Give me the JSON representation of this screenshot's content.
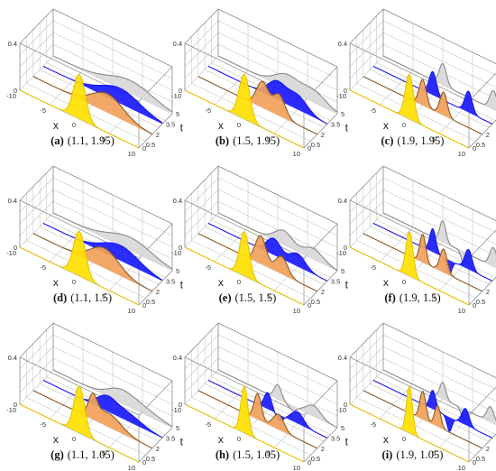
{
  "chart_data": [
    {
      "id": "a",
      "type": "area",
      "label": "(a)",
      "params": "(1.1, 1.95)",
      "alpha": 1.1,
      "beta": 1.95,
      "xlabel": "x",
      "ylabel": "t",
      "zlim": [
        0,
        0.4
      ],
      "xlim": [
        -10,
        10
      ],
      "t_values": [
        0,
        2,
        3.5,
        5
      ],
      "x_ticks": [
        "-10",
        "-5",
        "0",
        "5",
        "10"
      ],
      "t_ticks": [
        "0",
        "0.5",
        "2",
        "3.5",
        "5"
      ],
      "z_ticks": [
        "0",
        "0.4"
      ],
      "series": [
        {
          "t": 0,
          "color": "#e8c200",
          "fill": "#ffe100",
          "peaks": [
            {
              "c": 0,
              "w": 1.0,
              "a": 0.38
            }
          ]
        },
        {
          "t": 2,
          "color": "#8a5a25",
          "fill": "#f2a15a",
          "peaks": [
            {
              "c": 2.5,
              "w": 2.6,
              "a": 0.16
            }
          ]
        },
        {
          "t": 3.5,
          "color": "#1515ee",
          "fill": "#1a1aff",
          "peaks": [
            {
              "c": 3,
              "w": 3.2,
              "a": 0.13
            }
          ]
        },
        {
          "t": 5,
          "color": "#8a8a8a",
          "fill": "#d8d8d8",
          "peaks": [
            {
              "c": 3,
              "w": 3.6,
              "a": 0.11
            }
          ]
        }
      ]
    },
    {
      "id": "b",
      "type": "area",
      "label": "(b)",
      "params": "(1.5, 1.95)",
      "alpha": 1.5,
      "beta": 1.95,
      "xlabel": "x",
      "ylabel": "t",
      "zlim": [
        0,
        0.4
      ],
      "xlim": [
        -10,
        10
      ],
      "t_values": [
        0,
        2,
        3.5,
        5
      ],
      "x_ticks": [
        "-10",
        "-5",
        "0",
        "5",
        "10"
      ],
      "t_ticks": [
        "0",
        "0.5",
        "2",
        "3.5",
        "5"
      ],
      "z_ticks": [
        "0",
        "0.4"
      ],
      "series": [
        {
          "t": 0,
          "color": "#e8c200",
          "fill": "#ffe100",
          "peaks": [
            {
              "c": 0,
              "w": 0.9,
              "a": 0.38
            }
          ]
        },
        {
          "t": 2,
          "color": "#8a5a25",
          "fill": "#f2a15a",
          "peaks": [
            {
              "c": 0.8,
              "w": 1.0,
              "a": 0.22
            },
            {
              "c": 3.6,
              "w": 1.0,
              "a": 0.18
            }
          ]
        },
        {
          "t": 3.5,
          "color": "#1515ee",
          "fill": "#1a1aff",
          "peaks": [
            {
              "c": 1.5,
              "w": 1.5,
              "a": 0.15
            },
            {
              "c": 5,
              "w": 1.6,
              "a": 0.12
            }
          ]
        },
        {
          "t": 5,
          "color": "#8a8a8a",
          "fill": "#d8d8d8",
          "peaks": [
            {
              "c": 1.5,
              "w": 2.0,
              "a": 0.12
            },
            {
              "c": 6,
              "w": 2.0,
              "a": 0.1
            }
          ]
        }
      ]
    },
    {
      "id": "c",
      "type": "area",
      "label": "(c)",
      "params": "(1.9, 1.95)",
      "alpha": 1.9,
      "beta": 1.95,
      "xlabel": "x",
      "ylabel": "t",
      "zlim": [
        0,
        0.4
      ],
      "xlim": [
        -10,
        10
      ],
      "t_values": [
        0,
        2,
        3.5,
        5
      ],
      "x_ticks": [
        "-10",
        "-5",
        "0",
        "5",
        "10"
      ],
      "t_ticks": [
        "0",
        "0.5",
        "2",
        "3.5",
        "5"
      ],
      "z_ticks": [
        "0",
        "0.4"
      ],
      "series": [
        {
          "t": 0,
          "color": "#e8c200",
          "fill": "#ffe100",
          "peaks": [
            {
              "c": 0,
              "w": 0.7,
              "a": 0.38
            }
          ]
        },
        {
          "t": 2,
          "color": "#8a5a25",
          "fill": "#f2a15a",
          "peaks": [
            {
              "c": 0,
              "w": 0.6,
              "a": 0.22
            },
            {
              "c": 3.5,
              "w": 0.6,
              "a": 0.2
            }
          ]
        },
        {
          "t": 3.5,
          "color": "#1515ee",
          "fill": "#1a1aff",
          "peaks": [
            {
              "c": 0,
              "w": 0.6,
              "a": 0.2
            },
            {
              "c": 6,
              "w": 0.6,
              "a": 0.18
            }
          ]
        },
        {
          "t": 5,
          "color": "#8a8a8a",
          "fill": "#d8d8d8",
          "peaks": [
            {
              "c": 0,
              "w": 0.6,
              "a": 0.18
            },
            {
              "c": 8.5,
              "w": 0.6,
              "a": 0.16
            }
          ]
        }
      ]
    },
    {
      "id": "d",
      "type": "area",
      "label": "(d)",
      "params": "(1.1, 1.5)",
      "alpha": 1.1,
      "beta": 1.5,
      "xlabel": "x",
      "ylabel": "t",
      "zlim": [
        0,
        0.4
      ],
      "xlim": [
        -10,
        10
      ],
      "t_values": [
        0,
        2,
        3.5,
        5
      ],
      "x_ticks": [
        "-10",
        "-5",
        "0",
        "5",
        "10"
      ],
      "t_ticks": [
        "0",
        "0.5",
        "2",
        "3.5",
        "5"
      ],
      "z_ticks": [
        "0",
        "0.4"
      ],
      "series": [
        {
          "t": 0,
          "color": "#e8c200",
          "fill": "#ffe100",
          "peaks": [
            {
              "c": 0,
              "w": 1.0,
              "a": 0.38
            }
          ]
        },
        {
          "t": 2,
          "color": "#8a5a25",
          "fill": "#f2a15a",
          "peaks": [
            {
              "c": 2,
              "w": 2.4,
              "a": 0.17
            }
          ]
        },
        {
          "t": 3.5,
          "color": "#1515ee",
          "fill": "#1a1aff",
          "peaks": [
            {
              "c": 3,
              "w": 3.0,
              "a": 0.13
            }
          ]
        },
        {
          "t": 5,
          "color": "#8a8a8a",
          "fill": "#d8d8d8",
          "peaks": [
            {
              "c": 3,
              "w": 3.5,
              "a": 0.11
            }
          ]
        }
      ]
    },
    {
      "id": "e",
      "type": "area",
      "label": "(e)",
      "params": "(1.5, 1.5)",
      "alpha": 1.5,
      "beta": 1.5,
      "xlabel": "x",
      "ylabel": "t",
      "zlim": [
        0,
        0.4
      ],
      "xlim": [
        -10,
        10
      ],
      "t_values": [
        0,
        2,
        3.5,
        5
      ],
      "x_ticks": [
        "-10",
        "-5",
        "0",
        "5",
        "10"
      ],
      "t_ticks": [
        "0",
        "0.5",
        "2",
        "3.5",
        "5"
      ],
      "z_ticks": [
        "0",
        "0.4"
      ],
      "series": [
        {
          "t": 0,
          "color": "#e8c200",
          "fill": "#ffe100",
          "peaks": [
            {
              "c": 0,
              "w": 0.8,
              "a": 0.38
            }
          ]
        },
        {
          "t": 2,
          "color": "#8a5a25",
          "fill": "#f2a15a",
          "peaks": [
            {
              "c": 0.5,
              "w": 0.9,
              "a": 0.24
            },
            {
              "c": 4,
              "w": 1.0,
              "a": 0.15
            }
          ]
        },
        {
          "t": 3.5,
          "color": "#1515ee",
          "fill": "#1a1aff",
          "peaks": [
            {
              "c": 1,
              "w": 1.2,
              "a": 0.14
            },
            {
              "c": 5,
              "w": 1.3,
              "a": 0.11
            }
          ]
        },
        {
          "t": 5,
          "color": "#8a8a8a",
          "fill": "#d8d8d8",
          "peaks": [
            {
              "c": 1,
              "w": 1.5,
              "a": 0.12
            },
            {
              "c": 6,
              "w": 1.6,
              "a": 0.09
            }
          ]
        }
      ]
    },
    {
      "id": "f",
      "type": "area",
      "label": "(f)",
      "params": "(1.9, 1.5)",
      "alpha": 1.9,
      "beta": 1.5,
      "xlabel": "x",
      "ylabel": "t",
      "zlim": [
        0,
        0.4
      ],
      "xlim": [
        -10,
        10
      ],
      "t_values": [
        0,
        2,
        3.5,
        5
      ],
      "x_ticks": [
        "-10",
        "-5",
        "0",
        "5",
        "10"
      ],
      "t_ticks": [
        "0",
        "0.5",
        "2",
        "3.5",
        "5"
      ],
      "z_ticks": [
        "0",
        "0.4"
      ],
      "series": [
        {
          "t": 0,
          "color": "#e8c200",
          "fill": "#ffe100",
          "peaks": [
            {
              "c": 0,
              "w": 0.6,
              "a": 0.38
            }
          ]
        },
        {
          "t": 2,
          "color": "#8a5a25",
          "fill": "#f2a15a",
          "peaks": [
            {
              "c": 0,
              "w": 0.5,
              "a": 0.24
            },
            {
              "c": 3.5,
              "w": 0.6,
              "a": 0.2
            }
          ]
        },
        {
          "t": 3.5,
          "color": "#1515ee",
          "fill": "#1a1aff",
          "peaks": [
            {
              "c": 0,
              "w": 0.5,
              "a": 0.2
            },
            {
              "c": 2.8,
              "w": 0.4,
              "a": -0.12
            },
            {
              "c": 6,
              "w": 0.6,
              "a": 0.17
            }
          ]
        },
        {
          "t": 5,
          "color": "#8a8a8a",
          "fill": "#d8d8d8",
          "peaks": [
            {
              "c": 0,
              "w": 0.5,
              "a": 0.18
            },
            {
              "c": 3.5,
              "w": 0.4,
              "a": -0.1
            },
            {
              "c": 8.5,
              "w": 0.6,
              "a": 0.16
            }
          ]
        }
      ]
    },
    {
      "id": "g",
      "type": "area",
      "label": "(g)",
      "params": "(1.1, 1.05)",
      "alpha": 1.1,
      "beta": 1.05,
      "xlabel": "x",
      "ylabel": "t",
      "zlim": [
        0,
        0.4
      ],
      "xlim": [
        -10,
        10
      ],
      "t_values": [
        0,
        2,
        3.5,
        5
      ],
      "x_ticks": [
        "-10",
        "-5",
        "0",
        "5",
        "10"
      ],
      "t_ticks": [
        "0",
        "0.5",
        "2",
        "3.5",
        "5"
      ],
      "z_ticks": [
        "0",
        "0.4"
      ],
      "series": [
        {
          "t": 0,
          "color": "#e8c200",
          "fill": "#ffe100",
          "peaks": [
            {
              "c": 0,
              "w": 0.9,
              "a": 0.4
            }
          ]
        },
        {
          "t": 2,
          "color": "#8a5a25",
          "fill": "#f2a15a",
          "peaks": [
            {
              "c": 0,
              "w": 0.7,
              "a": 0.16
            },
            {
              "c": 2.5,
              "w": 2.2,
              "a": 0.12
            }
          ]
        },
        {
          "t": 3.5,
          "color": "#1515ee",
          "fill": "#1a1aff",
          "peaks": [
            {
              "c": 0.5,
              "w": 1.5,
              "a": 0.09
            },
            {
              "c": 3.5,
              "w": 2.6,
              "a": 0.08
            }
          ]
        },
        {
          "t": 5,
          "color": "#8a8a8a",
          "fill": "#d8d8d8",
          "peaks": [
            {
              "c": 1,
              "w": 2.0,
              "a": 0.07
            },
            {
              "c": 4,
              "w": 3.0,
              "a": 0.07
            }
          ]
        }
      ]
    },
    {
      "id": "h",
      "type": "area",
      "label": "(h)",
      "params": "(1.5, 1.05)",
      "alpha": 1.5,
      "beta": 1.05,
      "xlabel": "x",
      "ylabel": "t",
      "zlim": [
        0,
        0.4
      ],
      "xlim": [
        -10,
        10
      ],
      "t_values": [
        0,
        2,
        3.5,
        5
      ],
      "x_ticks": [
        "-10",
        "-5",
        "0",
        "5",
        "10"
      ],
      "t_ticks": [
        "0",
        "0.5",
        "2",
        "3.5",
        "5"
      ],
      "z_ticks": [
        "0",
        "0.4"
      ],
      "series": [
        {
          "t": 0,
          "color": "#e8c200",
          "fill": "#ffe100",
          "peaks": [
            {
              "c": 0,
              "w": 0.6,
              "a": 0.4
            }
          ]
        },
        {
          "t": 2,
          "color": "#8a5a25",
          "fill": "#f2a15a",
          "peaks": [
            {
              "c": 0,
              "w": 0.6,
              "a": 0.22
            },
            {
              "c": 3.5,
              "w": 0.9,
              "a": 0.13
            }
          ]
        },
        {
          "t": 3.5,
          "color": "#1515ee",
          "fill": "#1a1aff",
          "peaks": [
            {
              "c": 0,
              "w": 0.6,
              "a": 0.14
            },
            {
              "c": 2,
              "w": 0.6,
              "a": -0.05
            },
            {
              "c": 5,
              "w": 1.0,
              "a": 0.1
            }
          ]
        },
        {
          "t": 5,
          "color": "#8a8a8a",
          "fill": "#d8d8d8",
          "peaks": [
            {
              "c": 0,
              "w": 0.6,
              "a": 0.12
            },
            {
              "c": 2.5,
              "w": 0.6,
              "a": -0.04
            },
            {
              "c": 6,
              "w": 1.2,
              "a": 0.09
            }
          ]
        }
      ]
    },
    {
      "id": "i",
      "type": "area",
      "label": "(i)",
      "params": "(1.9, 1.05)",
      "alpha": 1.9,
      "beta": 1.05,
      "xlabel": "x",
      "ylabel": "t",
      "zlim": [
        0,
        0.4
      ],
      "xlim": [
        -10,
        10
      ],
      "t_values": [
        0,
        2,
        3.5,
        5
      ],
      "x_ticks": [
        "-10",
        "-5",
        "0",
        "5",
        "10"
      ],
      "t_ticks": [
        "0",
        "0.5",
        "2",
        "3.5",
        "5"
      ],
      "z_ticks": [
        "0",
        "0.4"
      ],
      "series": [
        {
          "t": 0,
          "color": "#e8c200",
          "fill": "#ffe100",
          "peaks": [
            {
              "c": 0,
              "w": 0.5,
              "a": 0.4
            }
          ]
        },
        {
          "t": 2,
          "color": "#8a5a25",
          "fill": "#f2a15a",
          "peaks": [
            {
              "c": 0,
              "w": 0.5,
              "a": 0.24
            },
            {
              "c": 2.5,
              "w": 0.5,
              "a": 0.18
            }
          ]
        },
        {
          "t": 3.5,
          "color": "#1515ee",
          "fill": "#1a1aff",
          "peaks": [
            {
              "c": 0,
              "w": 0.5,
              "a": 0.16
            },
            {
              "c": 2.8,
              "w": 0.4,
              "a": -0.12
            },
            {
              "c": 5.5,
              "w": 0.6,
              "a": 0.14
            }
          ]
        },
        {
          "t": 5,
          "color": "#8a8a8a",
          "fill": "#d8d8d8",
          "peaks": [
            {
              "c": 0,
              "w": 0.5,
              "a": 0.14
            },
            {
              "c": 3.5,
              "w": 0.4,
              "a": -0.1
            },
            {
              "c": 8,
              "w": 0.6,
              "a": 0.13
            }
          ]
        }
      ]
    }
  ]
}
